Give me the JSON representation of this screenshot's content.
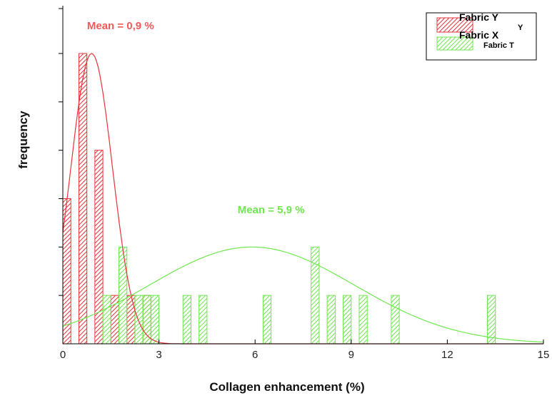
{
  "chart_data": {
    "type": "bar",
    "xlabel": "Collagen enhancement (%)",
    "ylabel": "frequency",
    "xlim": [
      0,
      15
    ],
    "ylim": [
      0,
      6
    ],
    "x_ticks": [
      0,
      3,
      6,
      9,
      12,
      15
    ],
    "x_tick_labels": [
      "0",
      "3",
      "6",
      "9",
      "12",
      "15"
    ],
    "y_tick_count": 6,
    "grid": false,
    "legend_position": "top-right",
    "legend_entries": [
      {
        "label": "Fabric Y",
        "color": "#e8333a"
      },
      {
        "label": "Fabric X",
        "color": "#6fe84f"
      }
    ],
    "legend_ghost_text": [
      "Y",
      "Fabric T"
    ],
    "series": [
      {
        "name": "Fabric Y",
        "color": "#e8333a",
        "bar_width": 0.25,
        "bars": [
          {
            "x": 0.0,
            "y": 3
          },
          {
            "x": 0.5,
            "y": 6
          },
          {
            "x": 1.0,
            "y": 4
          },
          {
            "x": 1.5,
            "y": 1
          },
          {
            "x": 2.0,
            "y": 1
          },
          {
            "x": 2.5,
            "y": 1
          }
        ],
        "fit": {
          "mean": 0.9,
          "sd": 0.65,
          "peak": 6
        }
      },
      {
        "name": "Fabric X",
        "color": "#6fe84f",
        "bar_width": 0.25,
        "bars": [
          {
            "x": 1.25,
            "y": 1
          },
          {
            "x": 1.75,
            "y": 2
          },
          {
            "x": 2.25,
            "y": 1
          },
          {
            "x": 2.5,
            "y": 1
          },
          {
            "x": 2.75,
            "y": 1
          },
          {
            "x": 3.75,
            "y": 1
          },
          {
            "x": 4.25,
            "y": 1
          },
          {
            "x": 6.25,
            "y": 1
          },
          {
            "x": 7.75,
            "y": 2
          },
          {
            "x": 8.25,
            "y": 1
          },
          {
            "x": 8.75,
            "y": 1
          },
          {
            "x": 9.25,
            "y": 1
          },
          {
            "x": 10.25,
            "y": 1
          },
          {
            "x": 13.25,
            "y": 1
          }
        ],
        "fit": {
          "mean": 5.9,
          "sd": 3.2,
          "peak": 2
        }
      }
    ],
    "annotations": [
      {
        "text": "Mean = 0,9 %",
        "color": "#f05a5a",
        "x": 1.8,
        "y": 6.5
      },
      {
        "text": "Mean = 5,9 %",
        "color": "#6fe84f",
        "x": 6.5,
        "y": 2.7
      }
    ]
  }
}
